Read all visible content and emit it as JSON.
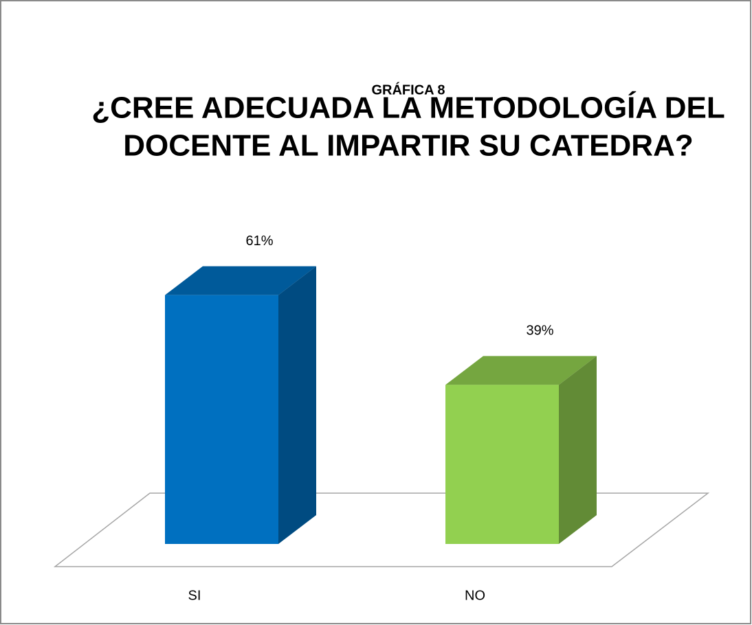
{
  "chart_data": {
    "type": "bar3d",
    "subtitle": "GRÁFICA 8",
    "title": [
      "¿CREE ADECUADA LA METODOLOGÍA DEL",
      "DOCENTE AL IMPARTIR SU CATEDRA?"
    ],
    "categories": [
      "SI",
      "NO"
    ],
    "values": [
      61,
      39
    ],
    "value_labels": [
      "61%",
      "39%"
    ],
    "colors": [
      "#0070c0",
      "#92d050"
    ]
  }
}
